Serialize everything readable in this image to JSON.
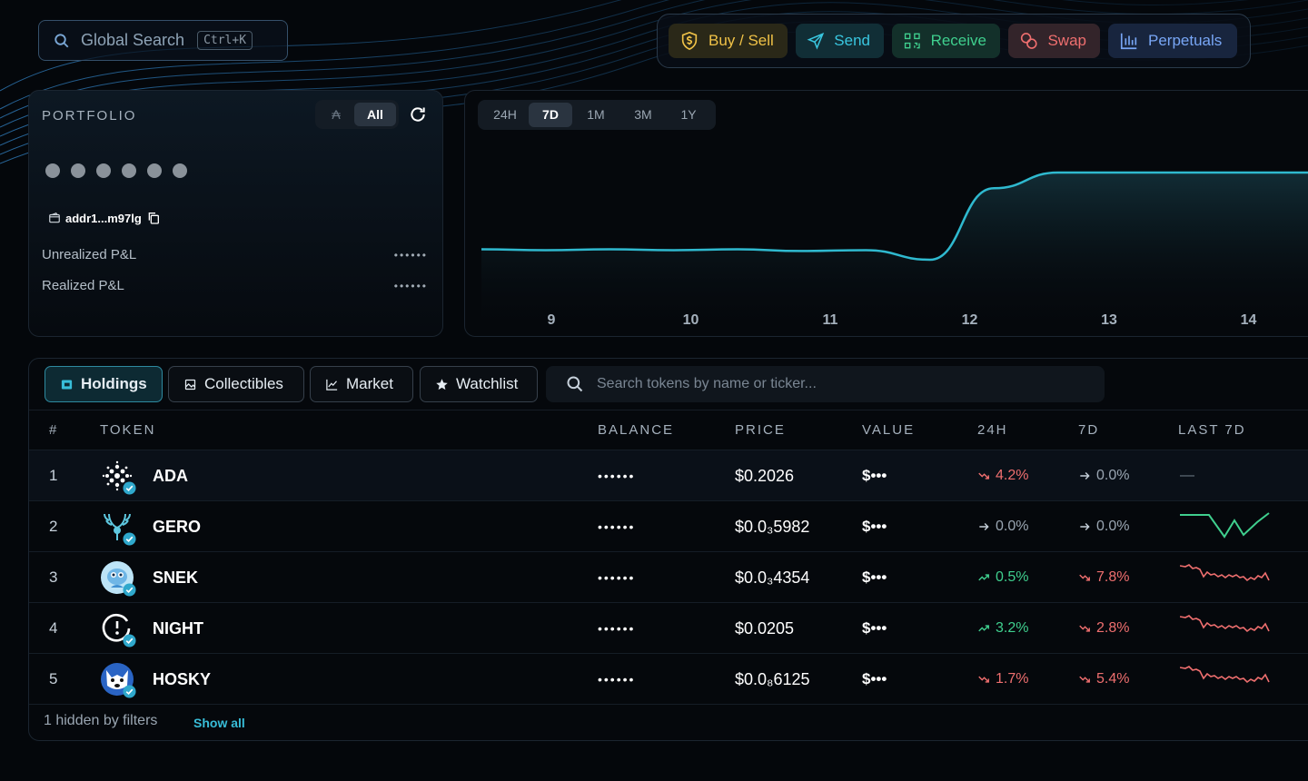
{
  "search": {
    "label": "Global Search",
    "shortcut": "Ctrl+K"
  },
  "actions": {
    "buy_sell": "Buy / Sell",
    "send": "Send",
    "receive": "Receive",
    "swap": "Swap",
    "perpetuals": "Perpetuals"
  },
  "portfolio": {
    "title": "PORTFOLIO",
    "toggle_ada": "₳",
    "toggle_all": "All",
    "address": "addr1...m97lg",
    "unrealized_label": "Unrealized P&L",
    "realized_label": "Realized P&L",
    "unrealized_value": "••••••",
    "realized_value": "••••••"
  },
  "chart": {
    "ranges": [
      "24H",
      "7D",
      "1M",
      "3M",
      "1Y"
    ],
    "active_range": "7D",
    "line_color": "#2fb9cf"
  },
  "chart_data": {
    "type": "area",
    "x": [
      9,
      10,
      11,
      12,
      13,
      14
    ],
    "xlabel": "",
    "ylabel": "",
    "grid": false,
    "series_shape": [
      0.12,
      0.11,
      0.12,
      0.11,
      0.12,
      0.1,
      0.11,
      0.0,
      0.82,
      1.0,
      1.0,
      1.0,
      1.0,
      1.0
    ]
  },
  "tabs": {
    "holdings": "Holdings",
    "collectibles": "Collectibles",
    "market": "Market",
    "watchlist": "Watchlist"
  },
  "token_search": {
    "placeholder": "Search tokens by name or ticker..."
  },
  "table": {
    "headers": {
      "num": "#",
      "token": "TOKEN",
      "balance": "BALANCE",
      "price": "PRICE",
      "value": "VALUE",
      "h24": "24H",
      "d7": "7D",
      "last7d": "LAST 7D"
    },
    "rows": [
      {
        "n": "1",
        "name": "ADA",
        "balance": "••••••",
        "price": "$0.2026",
        "value": "$•••",
        "h24": "4.2%",
        "h24_dir": "down",
        "d7": "0.0%",
        "d7_dir": "flat",
        "spark": "none",
        "last7d": "—"
      },
      {
        "n": "2",
        "name": "GERO",
        "balance": "••••••",
        "price": "$0.0₃5982",
        "value": "$•••",
        "h24": "0.0%",
        "h24_dir": "flat",
        "d7": "0.0%",
        "d7_dir": "flat",
        "spark": "green"
      },
      {
        "n": "3",
        "name": "SNEK",
        "balance": "••••••",
        "price": "$0.0₃4354",
        "value": "$•••",
        "h24": "0.5%",
        "h24_dir": "up",
        "d7": "7.8%",
        "d7_dir": "down",
        "spark": "red"
      },
      {
        "n": "4",
        "name": "NIGHT",
        "balance": "••••••",
        "price": "$0.0205",
        "value": "$•••",
        "h24": "3.2%",
        "h24_dir": "up",
        "d7": "2.8%",
        "d7_dir": "down",
        "spark": "red"
      },
      {
        "n": "5",
        "name": "HOSKY",
        "balance": "••••••",
        "price": "$0.0₈6125",
        "value": "$•••",
        "h24": "1.7%",
        "h24_dir": "down",
        "d7": "5.4%",
        "d7_dir": "down",
        "spark": "red"
      }
    ]
  },
  "footer": {
    "hidden": "1 hidden by filters",
    "show_all": "Show all"
  },
  "colors": {
    "accent": "#38bdd8",
    "up": "#3fcf8e",
    "down": "#ef6f6f",
    "gold": "#f0c247",
    "blue": "#78a6f5"
  }
}
